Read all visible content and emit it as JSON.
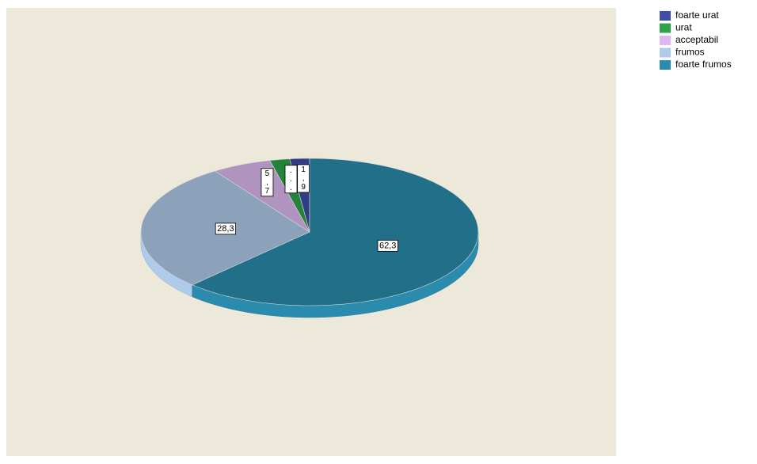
{
  "chart_data": {
    "type": "pie",
    "categories": [
      "foarte urat",
      "urat",
      "acceptabil",
      "frumos",
      "foarte frumos"
    ],
    "values": [
      1.9,
      1.9,
      5.7,
      28.3,
      62.3
    ],
    "value_labels": [
      "1,9",
      "...",
      "5,7",
      "28,3",
      "62,3"
    ],
    "colors": [
      "#3d4ea8",
      "#2ea24a",
      "#dcb8ee",
      "#aecbe9",
      "#2b8bac"
    ],
    "legend": "top-right"
  }
}
